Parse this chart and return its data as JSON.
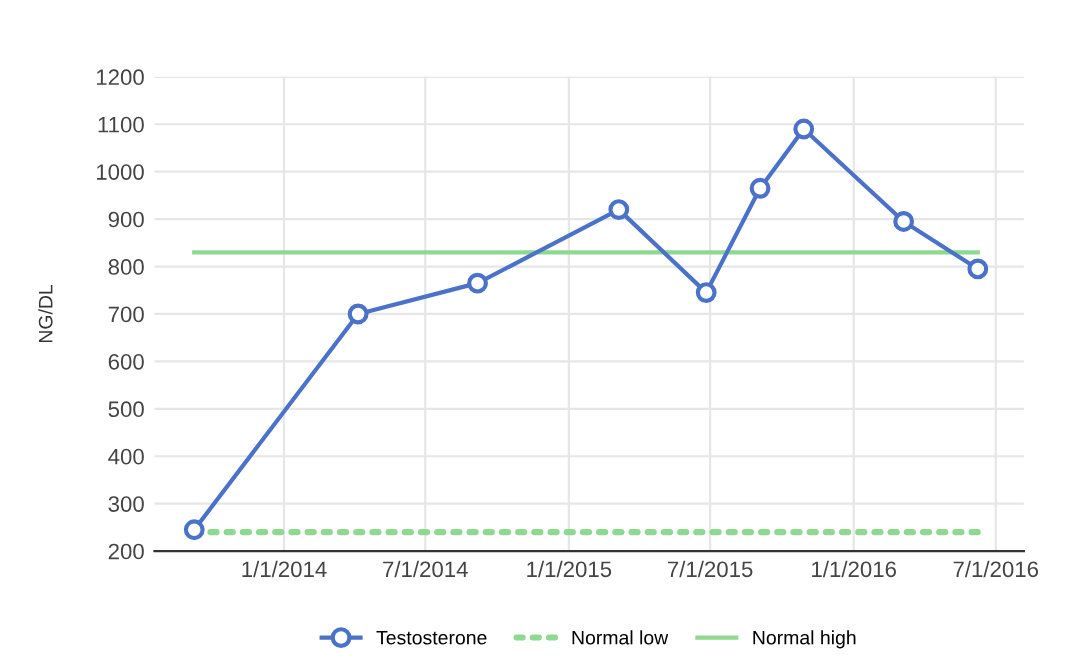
{
  "chart_data": {
    "type": "line",
    "ylabel": "NG/DL",
    "x": [
      "2013-09-08",
      "2014-04-06",
      "2014-09-06",
      "2015-03-06",
      "2015-06-26",
      "2015-09-03",
      "2015-10-29",
      "2016-03-05",
      "2016-06-08"
    ],
    "series": [
      {
        "name": "Testosterone",
        "color": "#4a72c8",
        "marker": "circle",
        "line_style": "solid",
        "values": [
          245,
          700,
          765,
          920,
          745,
          965,
          1090,
          895,
          795
        ]
      },
      {
        "name": "Normal low",
        "color": "#8fd88f",
        "marker": "none",
        "line_style": "dotted",
        "values": [
          240,
          240,
          240,
          240,
          240,
          240,
          240,
          240,
          240
        ]
      },
      {
        "name": "Normal high",
        "color": "#8fd88f",
        "marker": "none",
        "line_style": "solid",
        "values": [
          830,
          830,
          830,
          830,
          830,
          830,
          830,
          830,
          830
        ]
      }
    ],
    "xlim": [
      "2013-07-19",
      "2016-08-06"
    ],
    "xticks": [
      {
        "value": "2014-01-01",
        "label": "1/1/2014"
      },
      {
        "value": "2014-07-01",
        "label": "7/1/2014"
      },
      {
        "value": "2015-01-01",
        "label": "1/1/2015"
      },
      {
        "value": "2015-07-01",
        "label": "7/1/2015"
      },
      {
        "value": "2016-01-01",
        "label": "1/1/2016"
      },
      {
        "value": "2016-07-01",
        "label": "7/1/2016"
      }
    ],
    "ylim": [
      200,
      1200
    ],
    "yticks": [
      200,
      300,
      400,
      500,
      600,
      700,
      800,
      900,
      1000,
      1100,
      1200
    ],
    "grid": true,
    "legend": "bottom"
  }
}
